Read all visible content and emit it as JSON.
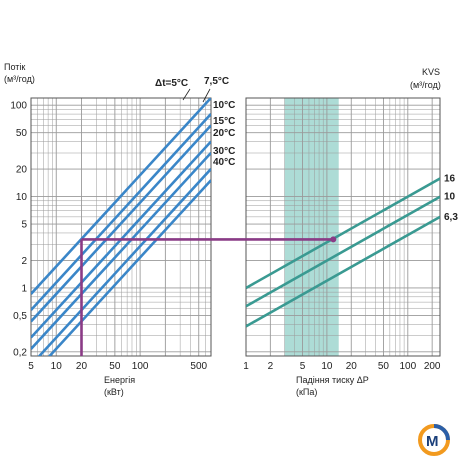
{
  "chart_data": [
    {
      "type": "line",
      "yscale": "log",
      "xscale": "log",
      "ylabel_line1": "Потік",
      "ylabel_line2": "(м³/год)",
      "xlabel_line1": "Енергія",
      "xlabel_line2": "(кВт)",
      "xlim": [
        5,
        700
      ],
      "ylim": [
        0.18,
        120
      ],
      "x_ticks": [
        "5",
        "10",
        "20",
        "50",
        "100",
        "500"
      ],
      "x_tick_values": [
        5,
        10,
        20,
        50,
        100,
        500
      ],
      "y_ticks": [
        "100",
        "50",
        "20",
        "10",
        "5",
        "2",
        "1",
        "0,5",
        "0,2"
      ],
      "y_tick_values": [
        100,
        50,
        20,
        10,
        5,
        2,
        1,
        0.5,
        0.2
      ],
      "dt_label": "Δt=5°C",
      "series": [
        {
          "name": "Δt=5°C",
          "x": [
            5,
            700
          ],
          "y": [
            0.86,
            120.4
          ]
        },
        {
          "name": "7,5°C",
          "x": [
            5,
            700
          ],
          "y": [
            0.573,
            80.3
          ]
        },
        {
          "name": "10°C",
          "x": [
            5,
            700
          ],
          "y": [
            0.43,
            60.2
          ]
        },
        {
          "name": "15°C",
          "x": [
            5,
            700
          ],
          "y": [
            0.287,
            40.1
          ]
        },
        {
          "name": "20°C",
          "x": [
            5,
            700
          ],
          "y": [
            0.215,
            30.1
          ]
        },
        {
          "name": "30°C",
          "x": [
            5,
            700
          ],
          "y": [
            0.143,
            20.1
          ]
        },
        {
          "name": "40°C",
          "x": [
            5,
            700
          ],
          "y": [
            0.108,
            15.1
          ]
        }
      ],
      "series_labels": [
        "7,5°C",
        "10°C",
        "15°C",
        "20°C",
        "30°C",
        "40°C"
      ]
    },
    {
      "type": "line",
      "yscale": "log",
      "xscale": "log",
      "ylabel_line1": "KVS",
      "ylabel_line2": "(м³/год)",
      "xlabel_line1": "Падіння тиску ΔP",
      "xlabel_line2": "(кПа)",
      "xlim": [
        1,
        250
      ],
      "ylim": [
        0.18,
        120
      ],
      "x_ticks": [
        "1",
        "2",
        "5",
        "10",
        "20",
        "50",
        "100",
        "200"
      ],
      "x_tick_values": [
        1,
        2,
        5,
        10,
        20,
        50,
        100,
        200
      ],
      "highlight_band": [
        3,
        14
      ],
      "series": [
        {
          "name": "16",
          "x": [
            1,
            250
          ],
          "y": [
            1,
            15.8
          ]
        },
        {
          "name": "10",
          "x": [
            1,
            250
          ],
          "y": [
            0.63,
            9.97
          ]
        },
        {
          "name": "6,3",
          "x": [
            1,
            250
          ],
          "y": [
            0.38,
            6.0
          ]
        }
      ]
    }
  ],
  "example_path": {
    "energy": 20,
    "flow": 3.4,
    "pressure_drop": 12
  },
  "colors": {
    "left_lines": "#3a86c8",
    "right_lines": "#3a9a92",
    "band": "#9fd6cf",
    "path": "#8a3b86",
    "grid": "#9a9a9a"
  },
  "logo_icon": "m-logo-icon"
}
